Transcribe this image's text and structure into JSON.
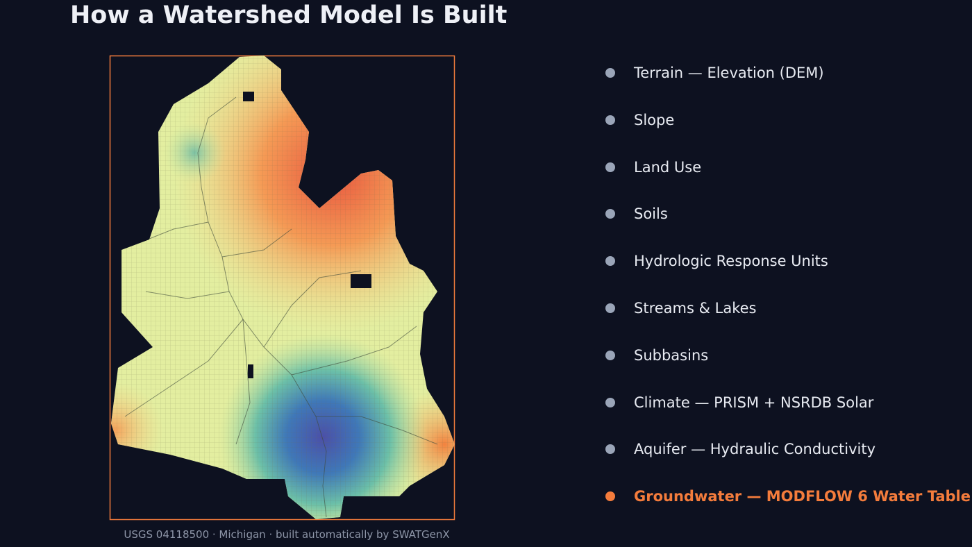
{
  "header": {
    "title": "How a Watershed Model Is Built"
  },
  "figure": {
    "caption": "USGS 04118500 · Michigan · built automatically by SWATGenX"
  },
  "steps": [
    {
      "label": "Terrain — Elevation (DEM)",
      "active": false
    },
    {
      "label": "Slope",
      "active": false
    },
    {
      "label": "Land Use",
      "active": false
    },
    {
      "label": "Soils",
      "active": false
    },
    {
      "label": "Hydrologic Response Units",
      "active": false
    },
    {
      "label": "Streams & Lakes",
      "active": false
    },
    {
      "label": "Subbasins",
      "active": false
    },
    {
      "label": "Climate — PRISM + NSRDB Solar",
      "active": false
    },
    {
      "label": "Aquifer — Hydraulic Conductivity",
      "active": false
    },
    {
      "label": "Groundwater — MODFLOW 6 Water Table",
      "active": true
    }
  ]
}
